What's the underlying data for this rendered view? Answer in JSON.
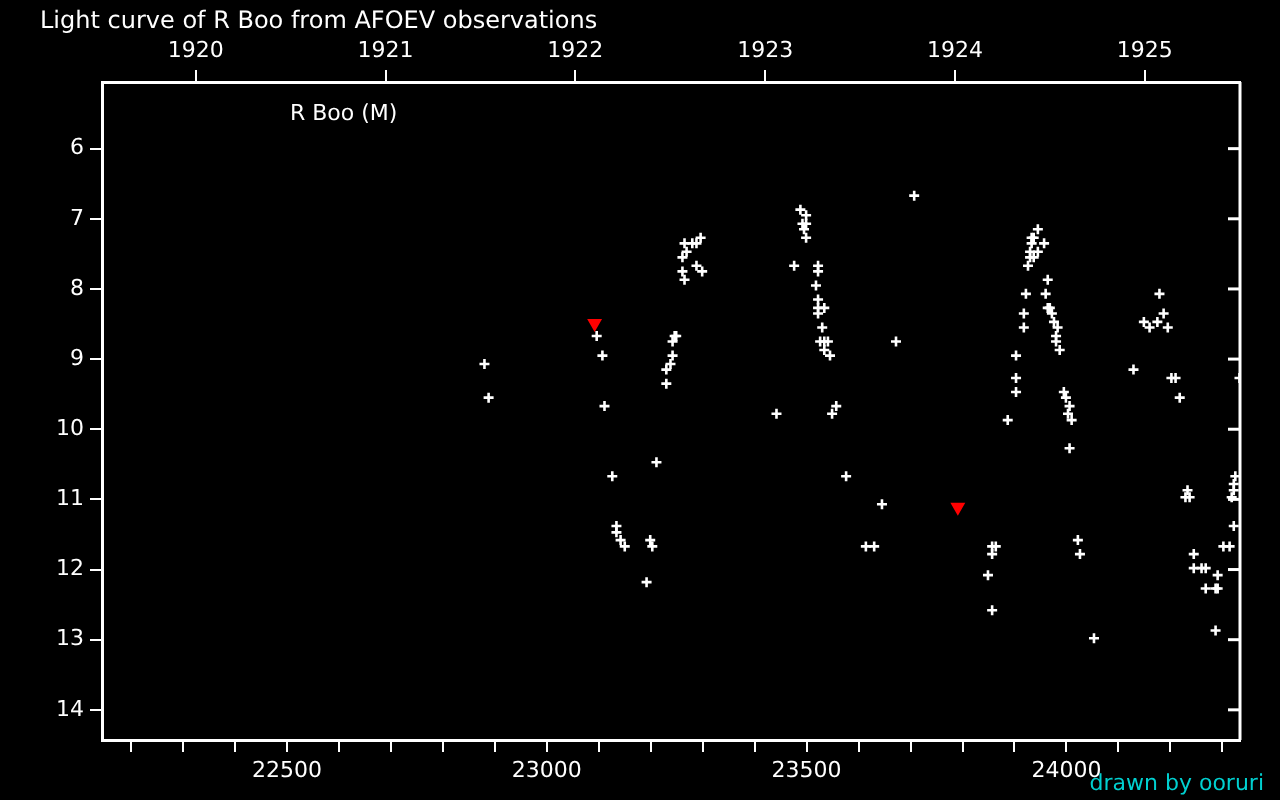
{
  "chart_data": {
    "type": "scatter",
    "title": "Light curve of R Boo from AFOEV observations",
    "annotations": [
      "R Boo (M)",
      "drawn by ooruri"
    ],
    "xlim": [
      22144,
      24334
    ],
    "xticks": [
      {
        "value": 22200,
        "label": null
      },
      {
        "value": 22300,
        "label": null
      },
      {
        "value": 22400,
        "label": null
      },
      22500,
      {
        "value": 22600,
        "label": null
      },
      {
        "value": 22700,
        "label": null
      },
      {
        "value": 22800,
        "label": null
      },
      {
        "value": 22900,
        "label": null
      },
      23000,
      {
        "value": 23100,
        "label": null
      },
      {
        "value": 23200,
        "label": null
      },
      {
        "value": 23300,
        "label": null
      },
      {
        "value": 23400,
        "label": null
      },
      23500,
      {
        "value": 23600,
        "label": null
      },
      {
        "value": 23700,
        "label": null
      },
      {
        "value": 23800,
        "label": null
      },
      {
        "value": 23900,
        "label": null
      },
      24000,
      {
        "value": 24100,
        "label": null
      },
      {
        "value": 24200,
        "label": null
      },
      {
        "value": 24300,
        "label": null
      }
    ],
    "x2lim": [
      1919.506,
      1925.502
    ],
    "x2ticks": [
      1920,
      1921,
      1922,
      1923,
      1924,
      1925
    ],
    "ylim": [
      14.43,
      5.05
    ],
    "yticks": [
      6,
      7,
      8,
      9,
      10,
      11,
      12,
      13,
      14
    ],
    "grid": false,
    "legend": false,
    "marker": "cross",
    "series": [
      {
        "color": "#ffffff",
        "x": [
          22880,
          22888,
          23096,
          23107,
          23111,
          23126,
          23134,
          23134,
          23142,
          23150,
          23192,
          23199,
          23203,
          23211,
          23230,
          23230,
          23238,
          23242,
          23242,
          23246,
          23249,
          23261,
          23265,
          23261,
          23269,
          23265,
          23280,
          23288,
          23296,
          23288,
          23299,
          23442,
          23476,
          23488,
          23499,
          23492,
          23499,
          23495,
          23499,
          23522,
          23522,
          23518,
          23522,
          23522,
          23534,
          23522,
          23530,
          23526,
          23534,
          23541,
          23534,
          23545,
          23557,
          23549,
          23576,
          23614,
          23630,
          23645,
          23672,
          23707,
          23849,
          23857,
          23864,
          23857,
          23857,
          23887,
          23903,
          23903,
          23903,
          23918,
          23918,
          23922,
          23926,
          23930,
          23937,
          23930,
          23945,
          23933,
          23933,
          23937,
          23945,
          23957,
          23964,
          23960,
          23964,
          23968,
          23972,
          23976,
          23983,
          23980,
          23980,
          23987,
          23995,
          23999,
          24006,
          24003,
          24010,
          24006,
          24022,
          24026,
          24053,
          24129,
          24149,
          24160,
          24175,
          24187,
          24179,
          24195,
          24202,
          24210,
          24218,
          24233,
          24229,
          24237,
          24245,
          24245,
          24260,
          24268,
          24268,
          24291,
          24287,
          24291,
          24287,
          24302,
          24314,
          24322,
          24318,
          24322,
          24322,
          24325,
          24333
        ],
        "values": [
          9.07,
          9.55,
          8.67,
          8.95,
          9.67,
          10.67,
          11.38,
          11.47,
          11.58,
          11.67,
          12.18,
          11.58,
          11.67,
          10.47,
          9.35,
          9.15,
          9.07,
          8.95,
          8.75,
          8.67,
          8.67,
          7.75,
          7.87,
          7.55,
          7.47,
          7.35,
          7.35,
          7.35,
          7.27,
          7.67,
          7.75,
          9.78,
          7.67,
          6.87,
          6.95,
          7.07,
          7.07,
          7.15,
          7.27,
          7.67,
          7.75,
          7.95,
          8.15,
          8.27,
          8.27,
          8.35,
          8.55,
          8.75,
          8.75,
          8.75,
          8.87,
          8.95,
          9.67,
          9.78,
          10.67,
          11.67,
          11.67,
          11.07,
          8.75,
          6.67,
          12.08,
          11.67,
          11.67,
          11.78,
          12.58,
          9.87,
          8.95,
          9.27,
          9.47,
          8.55,
          8.35,
          8.07,
          7.67,
          7.55,
          7.55,
          7.47,
          7.47,
          7.35,
          7.27,
          7.27,
          7.15,
          7.35,
          7.87,
          8.07,
          8.27,
          8.27,
          8.35,
          8.47,
          8.55,
          8.67,
          8.75,
          8.87,
          9.47,
          9.55,
          9.67,
          9.78,
          9.87,
          10.27,
          11.58,
          11.78,
          12.98,
          9.15,
          8.47,
          8.55,
          8.47,
          8.35,
          8.07,
          8.55,
          9.27,
          9.27,
          9.55,
          10.87,
          10.97,
          10.97,
          11.78,
          11.98,
          11.98,
          11.98,
          12.27,
          12.08,
          12.27,
          12.27,
          12.87,
          11.67,
          11.67,
          11.38,
          10.97,
          10.87,
          10.78,
          10.67,
          9.27
        ]
      },
      {
        "color": "#ff0000",
        "marker": "triangle",
        "x": [
          23092,
          23791
        ],
        "values": [
          8.49,
          11.11
        ]
      }
    ]
  }
}
